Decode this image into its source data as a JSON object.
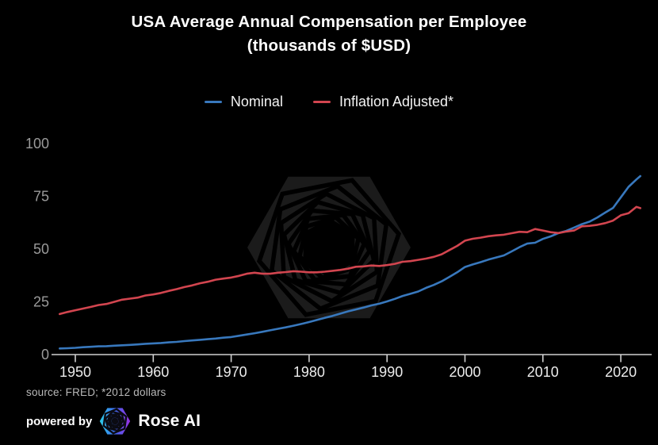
{
  "title": {
    "line1": "USA Average Annual Compensation per Employee",
    "line2": "(thousands of $USD)"
  },
  "legend": {
    "items": [
      {
        "label": "Nominal"
      },
      {
        "label": "Inflation Adjusted*"
      }
    ]
  },
  "footer": {
    "source": "source: FRED; *2012 dollars",
    "powered_by": "powered by",
    "brand": "Rose AI"
  },
  "colors": {
    "background": "#000000",
    "title_text": "#ffffff",
    "axis_line": "#cfcfcf",
    "x_tick_label": "#ececec",
    "y_tick_label": "#9a9a9a",
    "source_text": "#b9b9b9",
    "watermark_fill": "#1b1b1b",
    "nominal_line": "#3878bd",
    "inflation_line": "#d2454f",
    "logo_gradient": [
      "#2ed0e8",
      "#3b6cf0",
      "#9a2ee0"
    ]
  },
  "chart_data": {
    "type": "line",
    "title": "USA Average Annual Compensation per Employee (thousands of $USD)",
    "xlabel": "",
    "ylabel": "",
    "xlim": [
      1947,
      2024
    ],
    "ylim": [
      0,
      100
    ],
    "xticks": [
      1950,
      1960,
      1970,
      1980,
      1990,
      2000,
      2010,
      2020
    ],
    "yticks": [
      0,
      25,
      50,
      75,
      100
    ],
    "grid": false,
    "legend_position": "top-center",
    "x": [
      1948,
      1949,
      1950,
      1951,
      1952,
      1953,
      1954,
      1955,
      1956,
      1957,
      1958,
      1959,
      1960,
      1961,
      1962,
      1963,
      1964,
      1965,
      1966,
      1967,
      1968,
      1969,
      1970,
      1971,
      1972,
      1973,
      1974,
      1975,
      1976,
      1977,
      1978,
      1979,
      1980,
      1981,
      1982,
      1983,
      1984,
      1985,
      1986,
      1987,
      1988,
      1989,
      1990,
      1991,
      1992,
      1993,
      1994,
      1995,
      1996,
      1997,
      1998,
      1999,
      2000,
      2001,
      2002,
      2003,
      2004,
      2005,
      2006,
      2007,
      2008,
      2009,
      2010,
      2011,
      2012,
      2013,
      2014,
      2015,
      2016,
      2017,
      2018,
      2019,
      2020,
      2021,
      2022,
      2022.5
    ],
    "series": [
      {
        "name": "Nominal",
        "color": "#3878bd",
        "values": [
          2.9,
          3.0,
          3.2,
          3.5,
          3.7,
          3.9,
          4.0,
          4.2,
          4.4,
          4.6,
          4.8,
          5.1,
          5.3,
          5.5,
          5.8,
          6.0,
          6.4,
          6.7,
          7.0,
          7.3,
          7.6,
          8.0,
          8.3,
          8.9,
          9.5,
          10.1,
          10.8,
          11.5,
          12.2,
          12.9,
          13.7,
          14.5,
          15.4,
          16.4,
          17.4,
          18.3,
          19.4,
          20.5,
          21.4,
          22.3,
          23.3,
          24.1,
          25.2,
          26.4,
          27.8,
          28.8,
          29.9,
          31.6,
          33.0,
          34.7,
          36.8,
          39.0,
          41.5,
          42.7,
          43.8,
          45.0,
          46.0,
          47.0,
          48.9,
          50.9,
          52.6,
          53.0,
          54.8,
          56.0,
          57.6,
          58.6,
          60.2,
          61.8,
          63.0,
          65.0,
          67.3,
          69.5,
          74.5,
          79.5,
          83.0,
          84.6
        ]
      },
      {
        "name": "Inflation Adjusted*",
        "color": "#d2454f",
        "values": [
          19.2,
          20.2,
          21.0,
          21.8,
          22.6,
          23.5,
          24.0,
          25.0,
          26.0,
          26.5,
          27.0,
          28.0,
          28.5,
          29.2,
          30.2,
          31.0,
          32.0,
          32.8,
          33.8,
          34.5,
          35.5,
          36.0,
          36.5,
          37.3,
          38.3,
          38.8,
          38.3,
          38.3,
          38.8,
          39.1,
          39.5,
          39.3,
          39.0,
          39.0,
          39.3,
          39.7,
          40.1,
          40.7,
          41.6,
          41.8,
          42.2,
          42.0,
          42.4,
          43.0,
          44.0,
          44.3,
          44.9,
          45.5,
          46.3,
          47.5,
          49.5,
          51.5,
          54.0,
          54.9,
          55.4,
          56.1,
          56.5,
          56.8,
          57.5,
          58.2,
          58.0,
          59.5,
          58.8,
          58.0,
          57.6,
          58.3,
          58.8,
          60.8,
          61.0,
          61.5,
          62.3,
          63.5,
          66.0,
          67.0,
          70.0,
          69.4
        ]
      }
    ]
  }
}
